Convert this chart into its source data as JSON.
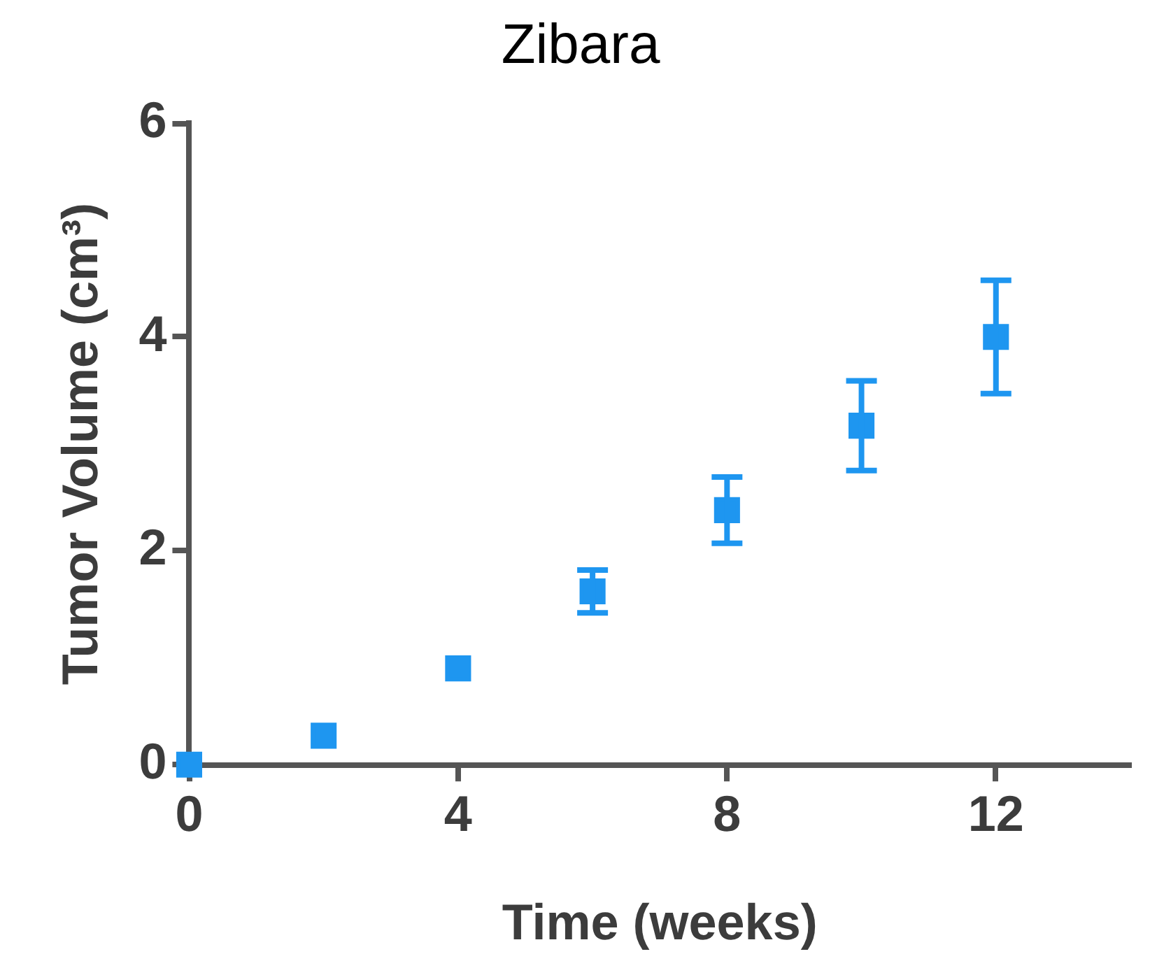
{
  "chart_data": {
    "type": "scatter",
    "title": "Zibara",
    "xlabel": "Time (weeks)",
    "ylabel": "Tumor Volume (cm³)",
    "xlim": [
      0,
      14
    ],
    "xticks": [
      0,
      4,
      8,
      12
    ],
    "ylim": [
      0,
      6
    ],
    "yticks": [
      0,
      2,
      4,
      6
    ],
    "grid": false,
    "legend": false,
    "marker": "square",
    "series": [
      {
        "color": "#1e96f0",
        "x": [
          0,
          2,
          4,
          6,
          8,
          10,
          12
        ],
        "values": [
          0,
          0.27,
          0.9,
          1.62,
          2.38,
          3.17,
          4.0
        ],
        "errors": [
          null,
          null,
          null,
          0.2,
          0.31,
          0.42,
          0.53
        ]
      }
    ]
  }
}
